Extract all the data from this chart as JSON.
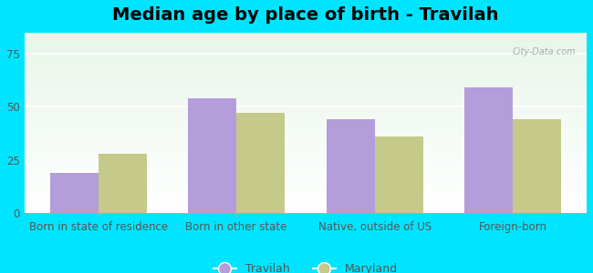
{
  "title": "Median age by place of birth - Travilah",
  "categories": [
    "Born in state of residence",
    "Born in other state",
    "Native, outside of US",
    "Foreign-born"
  ],
  "travilah_values": [
    19,
    54,
    44,
    59
  ],
  "maryland_values": [
    28,
    47,
    36,
    44
  ],
  "travilah_color": "#b39ddb",
  "maryland_color": "#c5c98a",
  "background_outer": "#00e5ff",
  "ylim": [
    0,
    85
  ],
  "yticks": [
    0,
    25,
    50,
    75
  ],
  "bar_width": 0.35,
  "legend_labels": [
    "Travilah",
    "Maryland"
  ],
  "title_fontsize": 14,
  "tick_fontsize": 8.5,
  "legend_fontsize": 9
}
